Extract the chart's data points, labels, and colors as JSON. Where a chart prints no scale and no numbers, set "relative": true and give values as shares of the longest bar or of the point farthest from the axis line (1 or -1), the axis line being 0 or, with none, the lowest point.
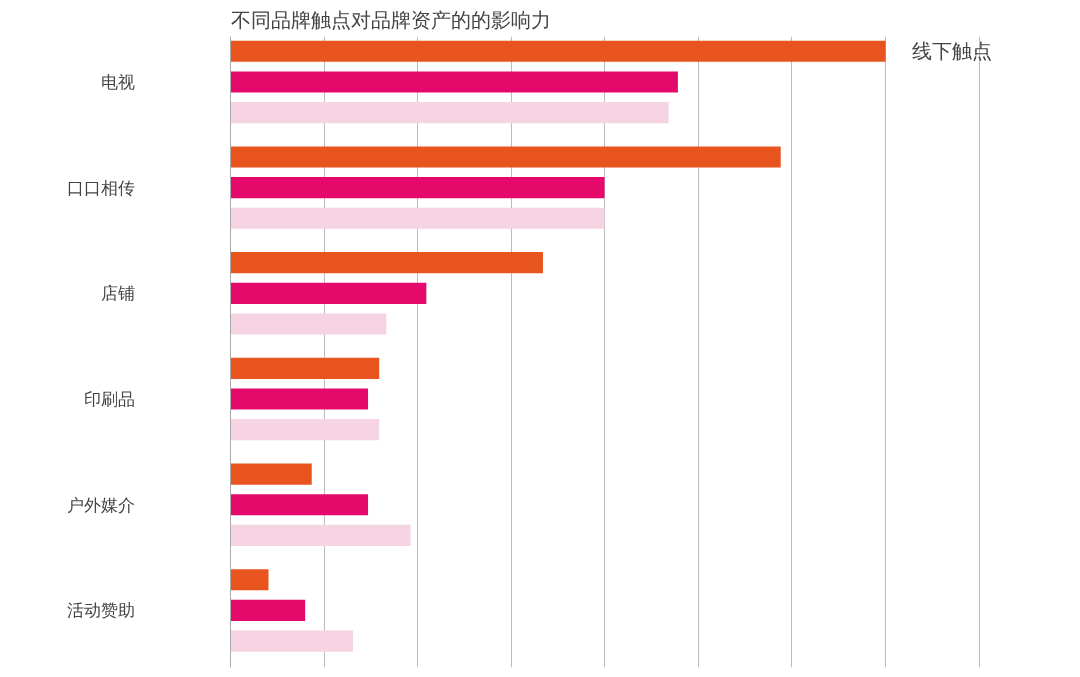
{
  "chart_data": {
    "type": "bar",
    "orientation": "horizontal",
    "relative": true,
    "title": "不同品牌触点对品牌资产的的影响力",
    "categories": [
      "电视",
      "口口相传",
      "店铺",
      "印刷品",
      "户外媒介",
      "活动赞助"
    ],
    "series": [
      {
        "color": "#e8541e",
        "values": [
          1.0,
          0.84,
          0.477,
          0.227,
          0.124,
          0.058
        ]
      },
      {
        "color": "#e5096b",
        "values": [
          0.683,
          0.571,
          0.299,
          0.21,
          0.21,
          0.114
        ]
      },
      {
        "color": "#f7d4e3",
        "values": [
          0.669,
          0.571,
          0.238,
          0.227,
          0.275,
          0.187
        ]
      }
    ],
    "annotations": [
      "线下触点"
    ],
    "grid": "x"
  }
}
